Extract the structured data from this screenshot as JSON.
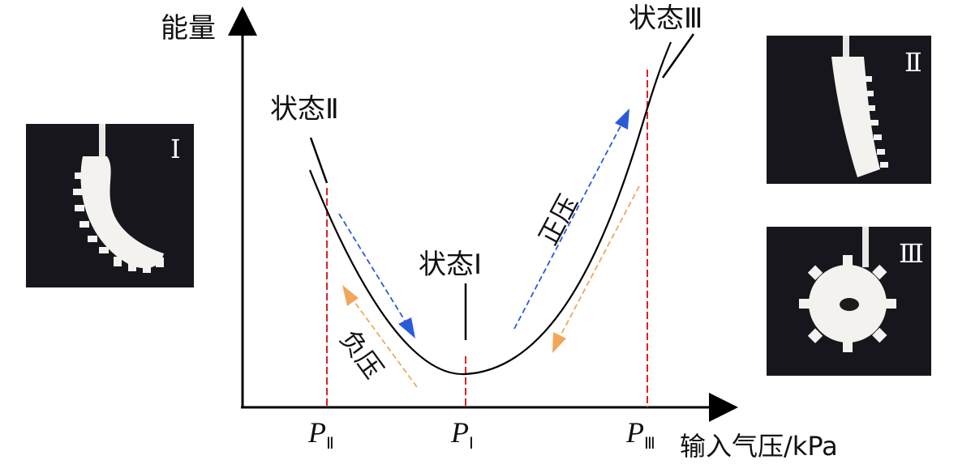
{
  "axes": {
    "y_label": "能量",
    "x_label": "输入气压/kPa"
  },
  "states": {
    "state_1": "状态Ⅰ",
    "state_2": "状态Ⅱ",
    "state_3": "状态Ⅲ"
  },
  "pressure_ticks": {
    "p2": {
      "letter": "P",
      "sub": "Ⅱ"
    },
    "p1": {
      "letter": "P",
      "sub": "Ⅰ"
    },
    "p3": {
      "letter": "P",
      "sub": "Ⅲ"
    }
  },
  "arrows": {
    "positive": "正压",
    "negative": "负压"
  },
  "photos": {
    "left": "Ⅰ",
    "top_right": "Ⅱ",
    "bottom_right": "Ⅲ"
  },
  "colors": {
    "blue_arrow": "#2a5bd7",
    "orange_arrow": "#f2a65a",
    "red_guide": "#e02020"
  }
}
